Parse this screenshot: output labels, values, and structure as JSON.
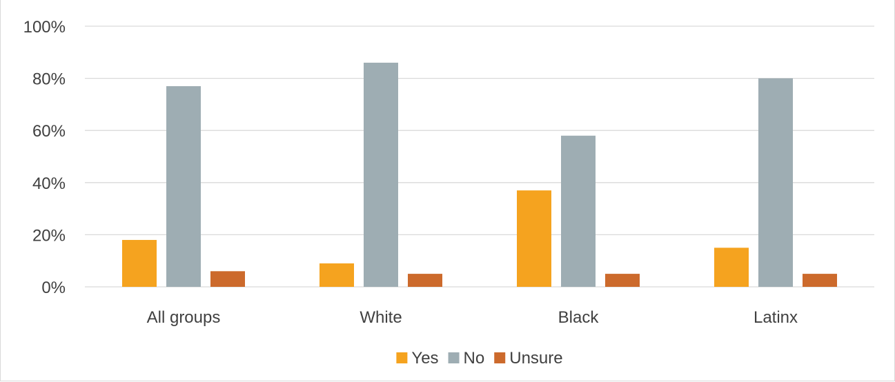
{
  "caption": "",
  "chart_data": {
    "type": "bar",
    "categories": [
      "All groups",
      "White",
      "Black",
      "Latinx"
    ],
    "series": [
      {
        "name": "Yes",
        "color": "#f5a31f",
        "values": [
          18,
          9,
          37,
          15
        ]
      },
      {
        "name": "No",
        "color": "#9eadb3",
        "values": [
          77,
          86,
          58,
          80
        ]
      },
      {
        "name": "Unsure",
        "color": "#cc6a2c",
        "values": [
          6,
          5,
          5,
          5
        ]
      }
    ],
    "ylim": [
      0,
      100
    ],
    "yticks": [
      "0%",
      "20%",
      "40%",
      "60%",
      "80%",
      "100%"
    ],
    "grid": true,
    "legend_position": "bottom"
  }
}
